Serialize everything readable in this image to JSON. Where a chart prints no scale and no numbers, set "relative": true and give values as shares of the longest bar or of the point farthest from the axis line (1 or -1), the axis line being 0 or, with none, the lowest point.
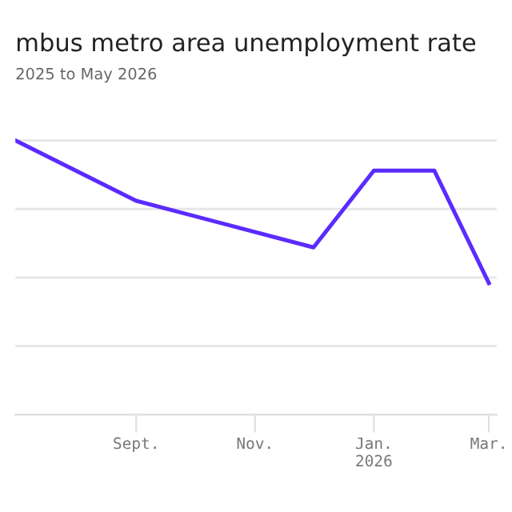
{
  "chart_data": {
    "type": "line",
    "title": "mbus metro area unemployment rate",
    "subtitle": "2025 to May 2026",
    "x": [
      "2025-07-01",
      "2025-09-01",
      "2025-12-01",
      "2026-01-01",
      "2026-02-01",
      "2026-03-01"
    ],
    "series": [
      {
        "color": "#5b2bff",
        "values": [
          1,
          0.78,
          0.61,
          0.89,
          0.89,
          0.48
        ]
      }
    ],
    "relative": true,
    "grid": "y",
    "xlim": [
      "2025-07-01",
      "2026-03-05"
    ],
    "xticks": [
      {
        "value": "2025-09-01",
        "label": "Sept."
      },
      {
        "value": "2025-11-01",
        "label": "Nov."
      },
      {
        "value": "2026-01-01",
        "label": "Jan.\n2026"
      },
      {
        "value": "2026-03-01",
        "label": "Mar."
      }
    ],
    "marker": "none",
    "line_style": "solid",
    "legend": false
  }
}
